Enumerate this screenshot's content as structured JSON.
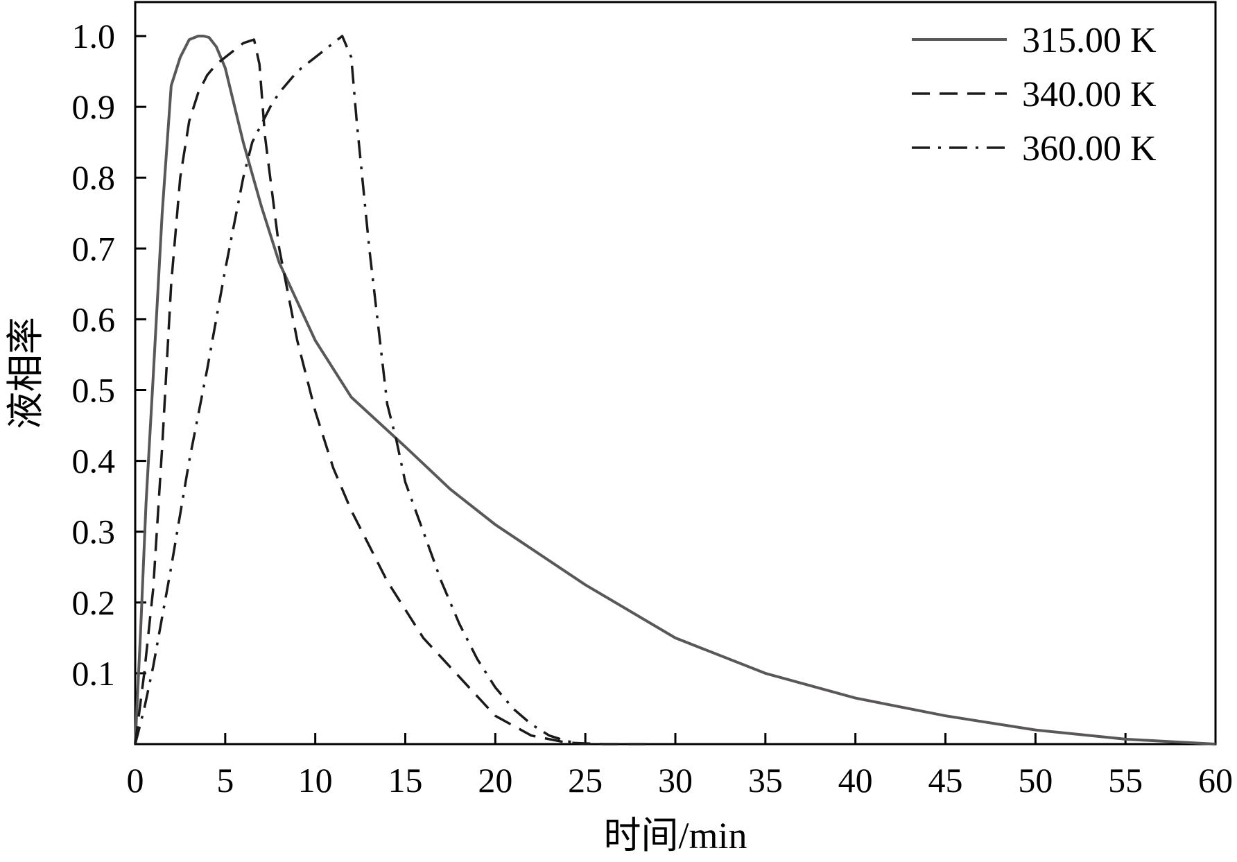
{
  "chart_data": {
    "type": "line",
    "xlabel": "时间/min",
    "ylabel": "液相率",
    "xlim": [
      0,
      60
    ],
    "ylim": [
      0,
      1.05
    ],
    "x_ticks": [
      0,
      5,
      10,
      15,
      20,
      25,
      30,
      35,
      40,
      45,
      50,
      55,
      60
    ],
    "x_tick_labels": [
      "0",
      "5",
      "10",
      "15",
      "20",
      "25",
      "30",
      "35",
      "40",
      "45",
      "50",
      "55",
      "60"
    ],
    "y_ticks": [
      0.1,
      0.2,
      0.3,
      0.4,
      0.5,
      0.6,
      0.7,
      0.8,
      0.9,
      1.0
    ],
    "y_tick_labels": [
      "0.1",
      "0.2",
      "0.3",
      "0.4",
      "0.5",
      "0.6",
      "0.7",
      "0.8",
      "0.9",
      "1.0"
    ],
    "grid": false,
    "legend_position": "top-right",
    "series": [
      {
        "name": "315.00 K",
        "color": "#595757",
        "dash": "solid",
        "x": [
          0,
          0.3,
          0.6,
          1.0,
          1.5,
          2.0,
          2.5,
          3.0,
          3.5,
          3.8,
          4.1,
          4.5,
          5.0,
          6.0,
          7.0,
          8.0,
          10.0,
          12.0,
          15.0,
          17.5,
          20.0,
          25.0,
          30.0,
          35.0,
          40.0,
          45.0,
          50.0,
          55.0,
          60.0
        ],
        "y": [
          0,
          0.16,
          0.34,
          0.52,
          0.75,
          0.93,
          0.97,
          0.995,
          1.0,
          1.0,
          0.998,
          0.985,
          0.955,
          0.85,
          0.76,
          0.68,
          0.57,
          0.49,
          0.42,
          0.36,
          0.31,
          0.225,
          0.15,
          0.1,
          0.065,
          0.04,
          0.02,
          0.007,
          0.0
        ]
      },
      {
        "name": "340.00 K",
        "color": "#1a1a1a",
        "dash": "dashed",
        "x": [
          0,
          0.5,
          1.0,
          1.5,
          2.0,
          2.5,
          3.0,
          3.5,
          4.0,
          4.5,
          5.0,
          5.5,
          6.0,
          6.6,
          6.9,
          7.2,
          7.6,
          8.0,
          9.0,
          10.0,
          11.0,
          12.0,
          13.0,
          14.0,
          15.0,
          16.0,
          18.0,
          20.0,
          22.0,
          24.0,
          25.0,
          26.0,
          28.5
        ],
        "y": [
          0,
          0.1,
          0.22,
          0.42,
          0.65,
          0.8,
          0.88,
          0.92,
          0.945,
          0.96,
          0.97,
          0.98,
          0.99,
          0.995,
          0.96,
          0.86,
          0.78,
          0.7,
          0.57,
          0.47,
          0.39,
          0.33,
          0.28,
          0.23,
          0.19,
          0.15,
          0.095,
          0.04,
          0.012,
          0.002,
          0.001,
          0.0,
          0.0
        ]
      },
      {
        "name": "360.00 K",
        "color": "#1a1a1a",
        "dash": "dashdot",
        "x": [
          0,
          0.5,
          1.0,
          2.0,
          3.0,
          4.0,
          5.0,
          6.0,
          6.5,
          7.0,
          7.5,
          8.0,
          9.0,
          10.0,
          11.0,
          11.5,
          12.0,
          12.3,
          13.0,
          14.0,
          14.5,
          15.0,
          16.0,
          17.0,
          18.0,
          19.0,
          20.0,
          21.0,
          22.0,
          23.0,
          24.0,
          25.0
        ],
        "y": [
          0,
          0.05,
          0.11,
          0.25,
          0.4,
          0.53,
          0.67,
          0.8,
          0.85,
          0.875,
          0.9,
          0.92,
          0.95,
          0.97,
          0.99,
          1.0,
          0.97,
          0.88,
          0.7,
          0.48,
          0.43,
          0.37,
          0.3,
          0.23,
          0.17,
          0.12,
          0.08,
          0.05,
          0.028,
          0.012,
          0.004,
          0.0
        ]
      }
    ]
  }
}
